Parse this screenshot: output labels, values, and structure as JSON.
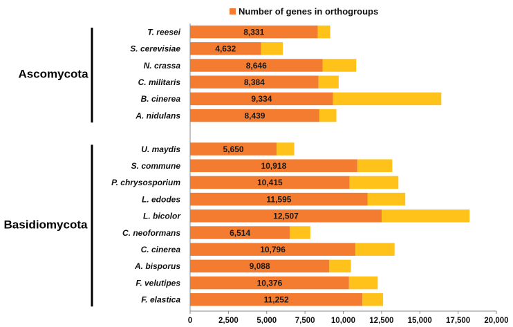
{
  "chart_data": {
    "type": "bar",
    "orientation": "horizontal",
    "stacked": true,
    "legend": {
      "label": "Number of genes in orthogroups",
      "position": "top"
    },
    "colors": {
      "orthogroups": "#f47c30",
      "remainder": "#ffc21a",
      "axis": "#8a8a8a",
      "bracket": "#000000"
    },
    "xlim": [
      0,
      20000
    ],
    "xticks": [
      "0",
      "2,500",
      "5,000",
      "7,500",
      "10,000",
      "12,500",
      "15,000",
      "17,500",
      "20,000"
    ],
    "xtick_values": [
      0,
      2500,
      5000,
      7500,
      10000,
      12500,
      15000,
      17500,
      20000
    ],
    "groups": [
      {
        "name": "Ascomycota",
        "rows": [
          {
            "species": "T. reesei",
            "orthogroup_genes": 8331,
            "label": "8,331",
            "total": 9150
          },
          {
            "species": "S. cerevisiae",
            "orthogroup_genes": 4632,
            "label": "4,632",
            "total": 6050
          },
          {
            "species": "N. crassa",
            "orthogroup_genes": 8646,
            "label": "8,646",
            "total": 10850
          },
          {
            "species": "C. militaris",
            "orthogroup_genes": 8384,
            "label": "8,384",
            "total": 9700
          },
          {
            "species": "B. cinerea",
            "orthogroup_genes": 9334,
            "label": "9,334",
            "total": 16400
          },
          {
            "species": "A. nidulans",
            "orthogroup_genes": 8439,
            "label": "8,439",
            "total": 9550
          }
        ]
      },
      {
        "name": "Basidiomycota",
        "rows": [
          {
            "species": "U. maydis",
            "orthogroup_genes": 5650,
            "label": "5,650",
            "total": 6800
          },
          {
            "species": "S. commune",
            "orthogroup_genes": 10918,
            "label": "10,918",
            "total": 13200
          },
          {
            "species": "P. chrysosporium",
            "orthogroup_genes": 10415,
            "label": "10,415",
            "total": 13600
          },
          {
            "species": "L. edodes",
            "orthogroup_genes": 11595,
            "label": "11,595",
            "total": 14050
          },
          {
            "species": "L. bicolor",
            "orthogroup_genes": 12507,
            "label": "12,507",
            "total": 18250
          },
          {
            "species": "C. neoformans",
            "orthogroup_genes": 6514,
            "label": "6,514",
            "total": 7850
          },
          {
            "species": "C. cinerea",
            "orthogroup_genes": 10796,
            "label": "10,796",
            "total": 13350
          },
          {
            "species": "A. bisporus",
            "orthogroup_genes": 9088,
            "label": "9,088",
            "total": 10500
          },
          {
            "species": "F. velutipes",
            "orthogroup_genes": 10376,
            "label": "10,376",
            "total": 12250
          },
          {
            "species": "F. elastica",
            "orthogroup_genes": 11252,
            "label": "11,252",
            "total": 12600
          }
        ]
      }
    ]
  }
}
